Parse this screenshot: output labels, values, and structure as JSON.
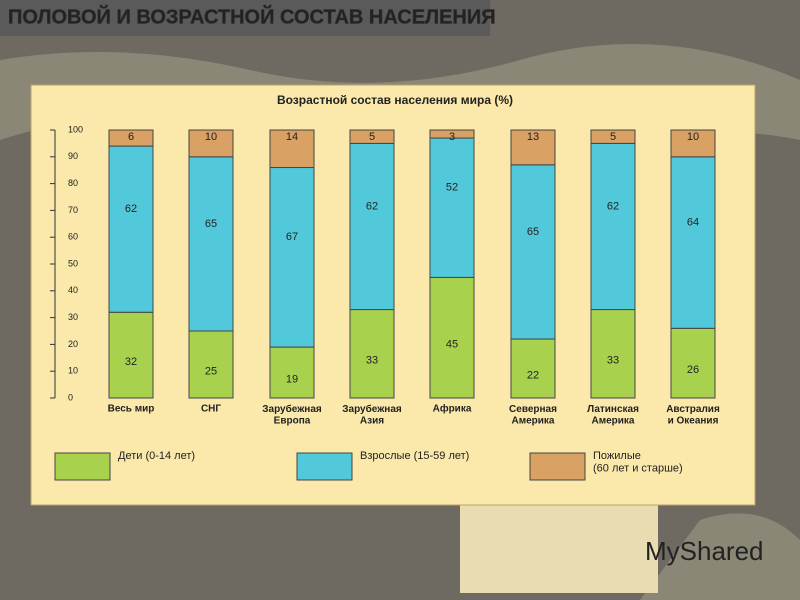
{
  "slide_title": "ПОЛОВОЙ И ВОЗРАСТНОЙ СОСТАВ НАСЕЛЕНИЯ",
  "watermark": "MyShared",
  "chart_data": {
    "type": "stacked_bar",
    "title": "Возрастной состав населения мира (%)",
    "categories": [
      "Весь мир",
      "СНГ",
      "Зарубежная\nЕвропа",
      "Зарубежная\nАзия",
      "Африка",
      "Северная\nАмерика",
      "Латинская\nАмерика",
      "Австралия\nи Океания"
    ],
    "series": [
      {
        "name": "Дети (0-14 лет)",
        "color": "#a8d24e",
        "values": [
          32,
          25,
          19,
          33,
          45,
          22,
          33,
          26
        ]
      },
      {
        "name": "Взрослые (15-59 лет)",
        "color": "#52c9da",
        "values": [
          62,
          65,
          67,
          62,
          52,
          65,
          62,
          64
        ]
      },
      {
        "name": "Пожилые\n(60 лет и старше)",
        "color": "#d9a163",
        "values": [
          6,
          10,
          14,
          5,
          3,
          13,
          5,
          10
        ]
      }
    ],
    "ylim": [
      0,
      100
    ],
    "yticks": [
      0,
      10,
      20,
      30,
      40,
      50,
      60,
      70,
      80,
      90,
      100
    ]
  }
}
